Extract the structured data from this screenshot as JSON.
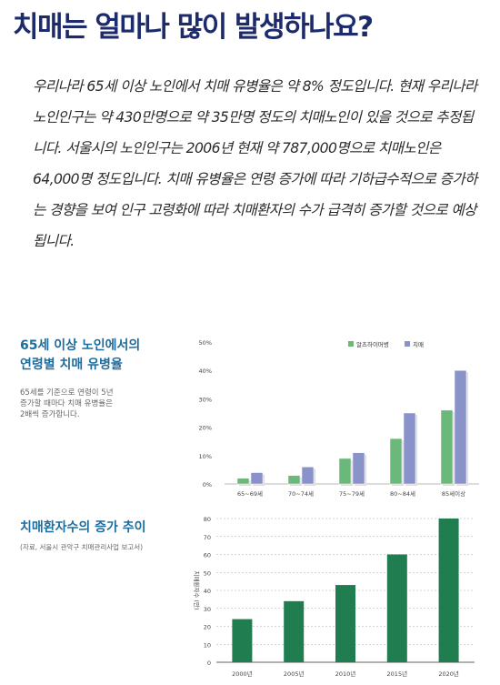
{
  "page": {
    "title": "치매는 얼마나 많이 발생하나요?",
    "paragraph": "우리나라 65세 이상 노인에서 치매 유병율은 약 8% 정도입니다. 현재 우리나라 노인인구는 약 430만명으로 약 35만명 정도의 치매노인이 있을 것으로 추정됩니다. 서울시의 노인인구는 2006년 현재 약 787,000명으로 치매노인은 64,000명 정도입니다. 치매 유병율은 연령 증가에 따라 기하급수적으로 증가하는 경향을 보여 인구 고령화에 따라 치매환자의 수가 급격히 증가할 것으로 예상됩니다."
  },
  "section1": {
    "title_line1": "65세 이상 노인에서의",
    "title_line2": "연령별 치매 유병율",
    "desc_line1": "65세를 기준으로 연령이 5년",
    "desc_line2": "증가할 때마다 치매 유병율은",
    "desc_line3": "2배씩 증가합니다."
  },
  "section2": {
    "title": "치매환자수의 증가 추이",
    "source": "(자료, 서울시 관악구 치매관리사업 보고서)"
  },
  "chart_data": [
    {
      "type": "bar",
      "categories": [
        "65~69세",
        "70~74세",
        "75~79세",
        "80~84세",
        "85세이상"
      ],
      "series": [
        {
          "name": "알츠하이머병",
          "values": [
            2,
            3,
            9,
            16,
            26
          ],
          "color": "#6ab87a"
        },
        {
          "name": "치매",
          "values": [
            4,
            6,
            11,
            25,
            40
          ],
          "color": "#8a93c9"
        }
      ],
      "yticks": [
        "0%",
        "10%",
        "20%",
        "30%",
        "40%",
        "50%"
      ],
      "ylim": [
        0,
        50
      ],
      "legend": "top-right",
      "grid": false
    },
    {
      "type": "bar",
      "categories": [
        "2000년",
        "2005년",
        "2010년",
        "2015년",
        "2020년"
      ],
      "values": [
        24,
        34,
        43,
        60,
        80
      ],
      "color": "#1f7d4f",
      "ylabel": "치매환자수 (만)",
      "yticks": [
        "0",
        "10",
        "20",
        "30",
        "40",
        "50",
        "60",
        "70",
        "80"
      ],
      "ylim": [
        0,
        80
      ],
      "grid": true
    }
  ]
}
